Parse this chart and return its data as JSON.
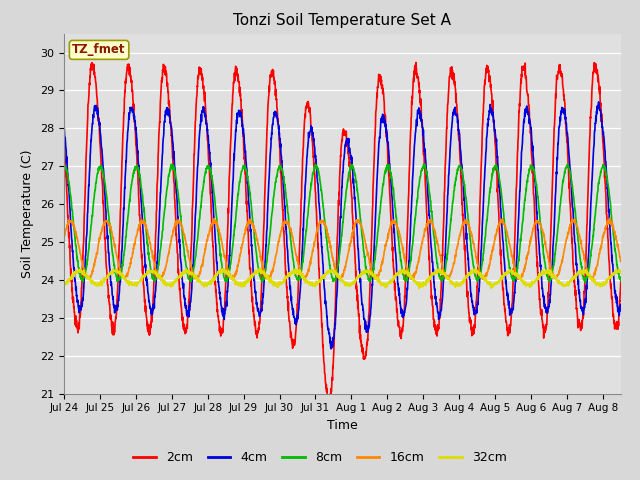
{
  "title": "Tonzi Soil Temperature Set A",
  "xlabel": "Time",
  "ylabel": "Soil Temperature (C)",
  "ylim": [
    21.0,
    30.5
  ],
  "yticks": [
    21.0,
    22.0,
    23.0,
    24.0,
    25.0,
    26.0,
    27.0,
    28.0,
    29.0,
    30.0
  ],
  "legend_label": "TZ_fmet",
  "series_labels": [
    "2cm",
    "4cm",
    "8cm",
    "16cm",
    "32cm"
  ],
  "series_colors": [
    "#ff0000",
    "#0000dd",
    "#00bb00",
    "#ff8800",
    "#dddd00"
  ],
  "line_widths": [
    1.2,
    1.2,
    1.2,
    1.2,
    1.2
  ],
  "bg_color": "#e8e8e8",
  "x_tick_labels": [
    "Jul 24",
    "Jul 25",
    "Jul 26",
    "Jul 27",
    "Jul 28",
    "Jul 29",
    "Jul 30",
    "Jul 31",
    "Aug 1",
    "Aug 2",
    "Aug 3",
    "Aug 4",
    "Aug 5",
    "Aug 6",
    "Aug 7",
    "Aug 8"
  ],
  "n_days": 15.5,
  "points_per_day": 144,
  "params": {
    "2cm": {
      "mean": 26.2,
      "amp": 3.5,
      "phase_shift": 0.0,
      "attenuation": 1.0
    },
    "4cm": {
      "mean": 25.9,
      "amp": 2.7,
      "phase_shift": 0.08,
      "attenuation": 0.95
    },
    "8cm": {
      "mean": 25.5,
      "amp": 1.5,
      "phase_shift": 0.18,
      "attenuation": 0.85
    },
    "16cm": {
      "mean": 24.8,
      "amp": 0.75,
      "phase_shift": 0.35,
      "attenuation": 0.7
    },
    "32cm": {
      "mean": 24.05,
      "amp": 0.18,
      "phase_shift": 0.6,
      "attenuation": 0.5
    }
  }
}
